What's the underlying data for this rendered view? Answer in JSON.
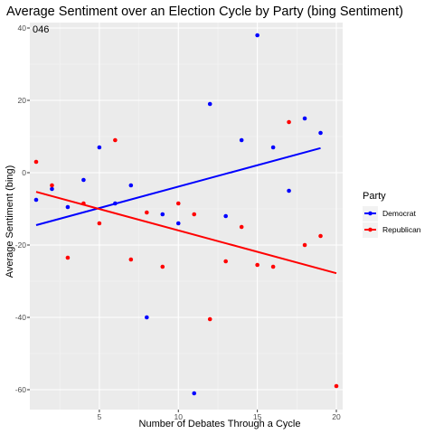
{
  "chart_data": {
    "type": "scatter",
    "title": "Average Sentiment over an Election Cycle by Party (bing Sentiment)",
    "xlabel": "Number of Debates Through a Cycle",
    "ylabel": "Average Sentiment (bing)",
    "xlim": [
      0.6,
      20.4
    ],
    "ylim": [
      -65.5,
      41.5
    ],
    "xticks": [
      5,
      10,
      15,
      20
    ],
    "yticks": [
      -60,
      -40,
      -20,
      0,
      20,
      40
    ],
    "grid": true,
    "annotation": "046",
    "legend": {
      "title": "Party",
      "placement": "right"
    },
    "series": [
      {
        "name": "Democrat",
        "color": "#0000ff",
        "points": [
          [
            1,
            -7.5
          ],
          [
            2,
            -4.5
          ],
          [
            3,
            -9.5
          ],
          [
            4,
            -2
          ],
          [
            5,
            7
          ],
          [
            6,
            -8.5
          ],
          [
            7,
            -3.5
          ],
          [
            8,
            -40
          ],
          [
            9,
            -11.5
          ],
          [
            10,
            -14
          ],
          [
            11,
            -61
          ],
          [
            12,
            19
          ],
          [
            13,
            -12
          ],
          [
            14,
            9
          ],
          [
            15,
            38
          ],
          [
            16,
            7
          ],
          [
            17,
            -5
          ],
          [
            18,
            15
          ],
          [
            19,
            11
          ]
        ],
        "trend": [
          [
            1,
            -14.5
          ],
          [
            19,
            6.8
          ]
        ]
      },
      {
        "name": "Republican",
        "color": "#ff0000",
        "points": [
          [
            1,
            3
          ],
          [
            2,
            -3.5
          ],
          [
            3,
            -23.5
          ],
          [
            4,
            -8.5
          ],
          [
            5,
            -14
          ],
          [
            6,
            9
          ],
          [
            7,
            -24
          ],
          [
            8,
            -11
          ],
          [
            9,
            -26
          ],
          [
            10,
            -8.5
          ],
          [
            11,
            -11.5
          ],
          [
            12,
            -40.5
          ],
          [
            13,
            -24.5
          ],
          [
            14,
            -15
          ],
          [
            15,
            -25.5
          ],
          [
            16,
            -26
          ],
          [
            17,
            14
          ],
          [
            18,
            -20
          ],
          [
            19,
            -17.5
          ],
          [
            20,
            -59
          ]
        ],
        "trend": [
          [
            1,
            -5.3
          ],
          [
            20,
            -27.8
          ]
        ]
      }
    ]
  }
}
